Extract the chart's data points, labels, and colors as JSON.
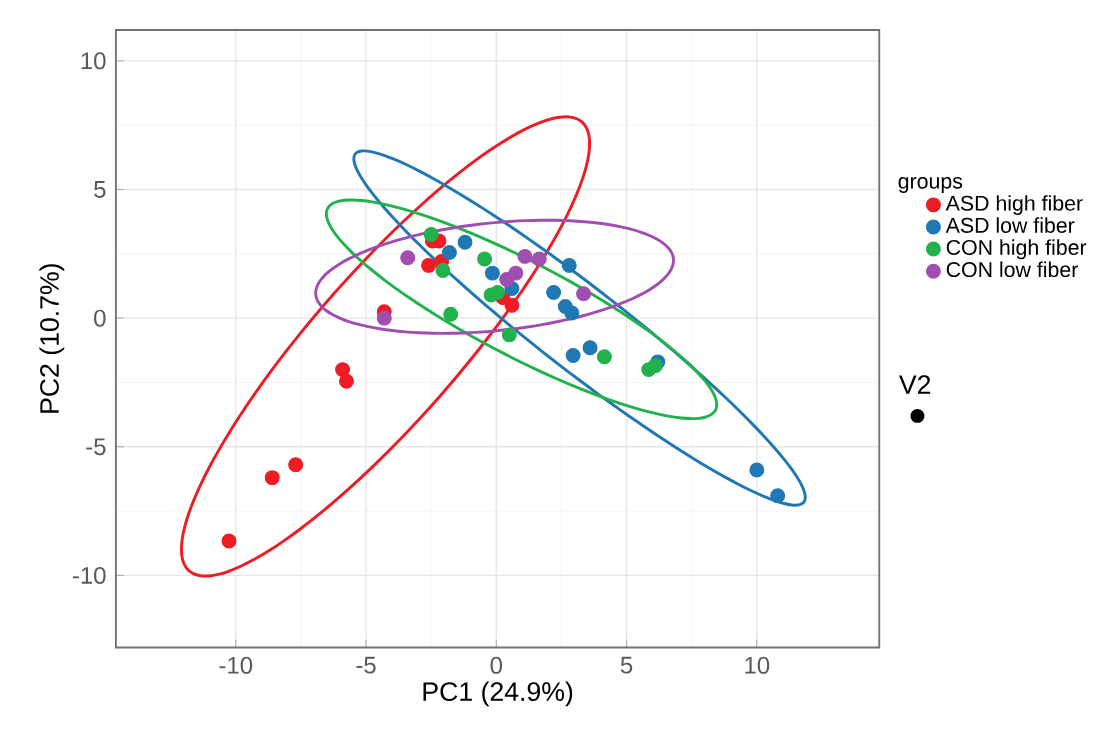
{
  "chart_data": {
    "type": "scatter",
    "xlabel": "PC1 (24.9%)",
    "ylabel": "PC2 (10.7%)",
    "legend_title": "groups",
    "legend": "right",
    "grid": true,
    "marker": "circle",
    "xlim": [
      -14.6,
      14.7
    ],
    "ylim": [
      -12.8,
      11.2
    ],
    "xticks": [
      -10,
      -5,
      0,
      5,
      10
    ],
    "yticks": [
      -10,
      -5,
      0,
      5,
      10
    ],
    "annotations": [
      "V2"
    ],
    "series": [
      {
        "type": "scatter",
        "name": "ASD high fiber",
        "color": "#ee1c25",
        "x": [
          -10.26,
          -8.6,
          -7.7,
          -5.9,
          -5.75,
          -4.3,
          -2.45,
          -2.2,
          -2.6,
          -2.1,
          0.6,
          0.25
        ],
        "values": [
          -8.66,
          -6.2,
          -5.7,
          -2.0,
          -2.45,
          0.25,
          3.0,
          3.0,
          2.05,
          2.2,
          0.5,
          0.8
        ]
      },
      {
        "type": "scatter",
        "name": "ASD low fiber",
        "color": "#1f78b4",
        "x": [
          -1.2,
          -1.8,
          -0.15,
          0.6,
          2.8,
          2.2,
          2.65,
          2.9,
          2.95,
          3.6,
          6.2,
          10.0,
          10.8
        ],
        "values": [
          2.95,
          2.55,
          1.75,
          1.15,
          2.05,
          1.0,
          0.45,
          0.2,
          -1.45,
          -1.15,
          -1.7,
          -5.9,
          -6.9
        ]
      },
      {
        "type": "scatter",
        "name": "CON high fiber",
        "color": "#22b24c",
        "x": [
          -2.5,
          -2.05,
          -1.75,
          -0.45,
          -0.2,
          0.05,
          0.5,
          4.15,
          5.85,
          6.1
        ],
        "values": [
          3.25,
          1.85,
          0.15,
          2.3,
          0.9,
          1.0,
          -0.65,
          -1.5,
          -2.0,
          -1.85
        ]
      },
      {
        "type": "scatter",
        "name": "CON low fiber",
        "color": "#a04fb0",
        "x": [
          -3.4,
          -4.3,
          1.1,
          1.65,
          0.4,
          0.75,
          3.35
        ],
        "values": [
          2.35,
          0.0,
          2.4,
          2.3,
          1.5,
          1.75,
          0.95
        ]
      }
    ]
  }
}
